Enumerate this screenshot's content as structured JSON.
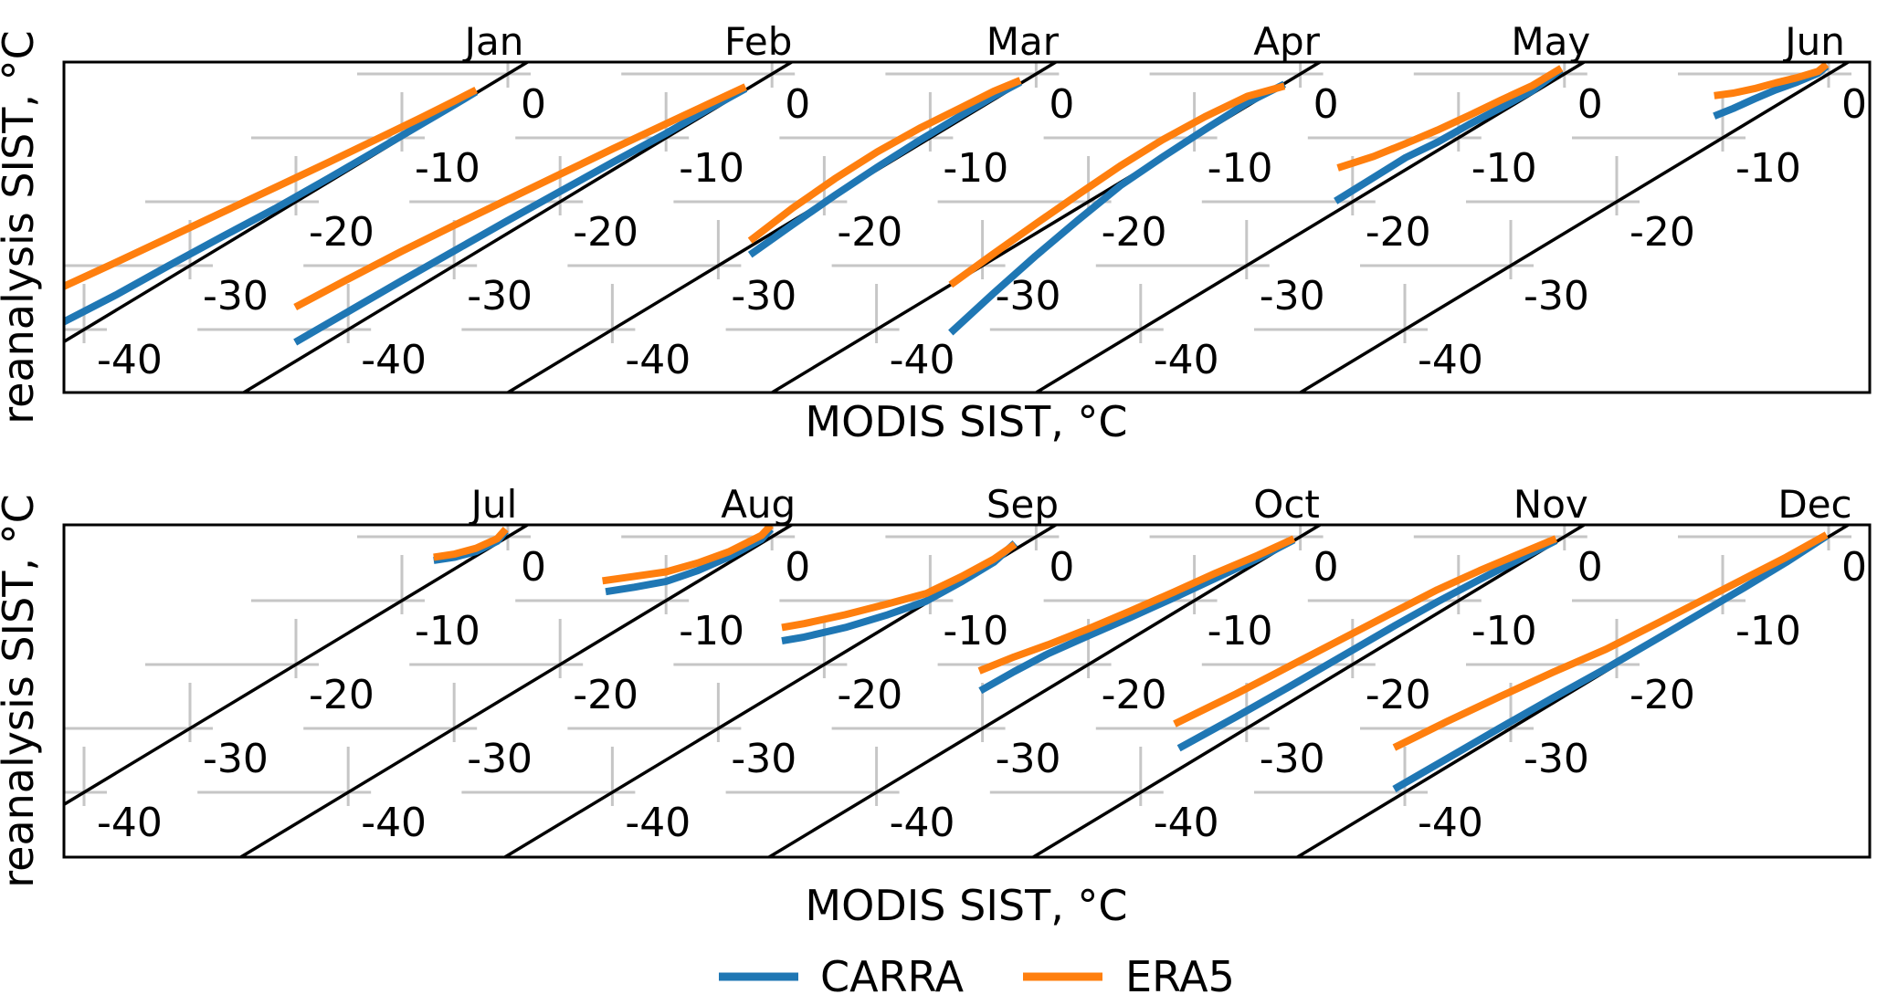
{
  "labels": {
    "x_axis": "MODIS SIST, °C",
    "y_axis": "reanalysis SIST, °C",
    "legend_carra": "CARRA",
    "legend_era5": "ERA5"
  },
  "chart_data": {
    "type": "line",
    "xlabel": "MODIS SIST, °C",
    "ylabel": "reanalysis SIST, °C",
    "x_axis_ticks_degC": [
      0,
      -10,
      -20,
      -30,
      -40
    ],
    "per_panel_xlim": [
      -50,
      2
    ],
    "per_panel_ylim": [
      -50,
      2
    ],
    "month_offset_degC": 25,
    "identity_line": true,
    "grid": false,
    "legend_position": "bottom-center",
    "rows": [
      [
        "Jan",
        "Feb",
        "Mar",
        "Apr",
        "May",
        "Jun"
      ],
      [
        "Jul",
        "Aug",
        "Sep",
        "Oct",
        "Nov",
        "Dec"
      ]
    ],
    "series": [
      {
        "name": "CARRA",
        "color": "#1f77b4"
      },
      {
        "name": "ERA5",
        "color": "#ff7f0e"
      }
    ],
    "months": [
      {
        "name": "Jan",
        "CARRA": [
          [
            -42.5,
            -39.3
          ],
          [
            -37,
            -34.6
          ],
          [
            -32,
            -30
          ],
          [
            -27,
            -25.5
          ],
          [
            -22,
            -21.1
          ],
          [
            -17,
            -16.4
          ],
          [
            -12,
            -11.6
          ],
          [
            -8,
            -7.7
          ],
          [
            -5,
            -4.8
          ],
          [
            -3,
            -2.8
          ]
        ],
        "ERA5": [
          [
            -42.5,
            -33.7
          ],
          [
            -37,
            -29.5
          ],
          [
            -32,
            -25.6
          ],
          [
            -27,
            -21.7
          ],
          [
            -22,
            -17.8
          ],
          [
            -17,
            -13.9
          ],
          [
            -12,
            -9.9
          ],
          [
            -8,
            -6.7
          ],
          [
            -5,
            -4.2
          ],
          [
            -3,
            -2.5
          ]
        ]
      },
      {
        "name": "Feb",
        "CARRA": [
          [
            -45,
            -42
          ],
          [
            -40,
            -37.2
          ],
          [
            -35,
            -32.4
          ],
          [
            -30,
            -27.7
          ],
          [
            -25,
            -23
          ],
          [
            -20,
            -18.4
          ],
          [
            -15,
            -13.8
          ],
          [
            -10,
            -9.3
          ],
          [
            -6,
            -5.5
          ],
          [
            -2.5,
            -2.3
          ]
        ],
        "ERA5": [
          [
            -45,
            -36.5
          ],
          [
            -40,
            -32.1
          ],
          [
            -35,
            -27.8
          ],
          [
            -30,
            -23.7
          ],
          [
            -25,
            -19.7
          ],
          [
            -20,
            -15.7
          ],
          [
            -15,
            -11.7
          ],
          [
            -10,
            -7.8
          ],
          [
            -6,
            -4.7
          ],
          [
            -2.5,
            -2
          ]
        ]
      },
      {
        "name": "Mar",
        "CARRA": [
          [
            -27,
            -28.3
          ],
          [
            -23,
            -23.6
          ],
          [
            -19,
            -19
          ],
          [
            -15,
            -14.6
          ],
          [
            -11,
            -10.4
          ],
          [
            -7,
            -6.4
          ],
          [
            -4,
            -3.5
          ],
          [
            -1.5,
            -1.3
          ]
        ],
        "ERA5": [
          [
            -27,
            -26.1
          ],
          [
            -23,
            -21
          ],
          [
            -19,
            -16.4
          ],
          [
            -15,
            -12.2
          ],
          [
            -11,
            -8.5
          ],
          [
            -7,
            -5.2
          ],
          [
            -4,
            -2.7
          ],
          [
            -1.5,
            -1
          ]
        ]
      },
      {
        "name": "Apr",
        "CARRA": [
          [
            -33,
            -40.5
          ],
          [
            -29,
            -34.4
          ],
          [
            -25,
            -28.5
          ],
          [
            -21,
            -22.9
          ],
          [
            -17,
            -17.5
          ],
          [
            -13,
            -13
          ],
          [
            -9,
            -8.7
          ],
          [
            -5,
            -4.5
          ],
          [
            -1.5,
            -1.6
          ]
        ],
        "ERA5": [
          [
            -33,
            -33
          ],
          [
            -29,
            -28.2
          ],
          [
            -25,
            -23.5
          ],
          [
            -21,
            -18.9
          ],
          [
            -17,
            -14.4
          ],
          [
            -13,
            -10.3
          ],
          [
            -9,
            -6.7
          ],
          [
            -5,
            -3.5
          ],
          [
            -1.5,
            -1.9
          ]
        ]
      },
      {
        "name": "May",
        "CARRA": [
          [
            -21.6,
            -19.9
          ],
          [
            -18,
            -16.2
          ],
          [
            -15,
            -13.1
          ],
          [
            -12,
            -10.7
          ],
          [
            -9,
            -7.9
          ],
          [
            -6,
            -5.3
          ],
          [
            -3,
            -2.6
          ],
          [
            -0.3,
            0.7
          ]
        ],
        "ERA5": [
          [
            -21.4,
            -14.7
          ],
          [
            -18,
            -12.9
          ],
          [
            -15,
            -10.9
          ],
          [
            -12,
            -8.8
          ],
          [
            -9,
            -6.5
          ],
          [
            -6,
            -4.1
          ],
          [
            -3,
            -1.8
          ],
          [
            -0.3,
            0.9
          ]
        ]
      },
      {
        "name": "Jun",
        "CARRA": [
          [
            -10.8,
            -6.6
          ],
          [
            -9,
            -5.4
          ],
          [
            -7,
            -3.9
          ],
          [
            -5,
            -2.5
          ],
          [
            -3,
            -1.3
          ],
          [
            -1,
            0.1
          ],
          [
            -0.2,
            1.2
          ]
        ],
        "ERA5": [
          [
            -10.8,
            -3.4
          ],
          [
            -9,
            -3
          ],
          [
            -7,
            -2.3
          ],
          [
            -5,
            -1.4
          ],
          [
            -3,
            -0.6
          ],
          [
            -1,
            0.4
          ],
          [
            -0.2,
            1.5
          ]
        ]
      },
      {
        "name": "Jul",
        "CARRA": [
          [
            -7,
            -3.7
          ],
          [
            -5,
            -3.2
          ],
          [
            -3,
            -2.3
          ],
          [
            -1,
            -0.7
          ],
          [
            -0.2,
            0.9
          ]
        ],
        "ERA5": [
          [
            -7,
            -3.2
          ],
          [
            -5,
            -2.7
          ],
          [
            -3,
            -1.8
          ],
          [
            -1,
            -0.3
          ],
          [
            -0.2,
            1.2
          ]
        ]
      },
      {
        "name": "Aug",
        "CARRA": [
          [
            -15.7,
            -8.6
          ],
          [
            -13,
            -7.9
          ],
          [
            -10,
            -7
          ],
          [
            -7,
            -5.3
          ],
          [
            -4,
            -3.1
          ],
          [
            -1,
            -0.4
          ],
          [
            -0.1,
            1.2
          ]
        ],
        "ERA5": [
          [
            -16,
            -6.9
          ],
          [
            -13,
            -6.2
          ],
          [
            -10,
            -5.5
          ],
          [
            -7,
            -4.1
          ],
          [
            -4,
            -2.3
          ],
          [
            -1,
            0.2
          ],
          [
            -0.1,
            1.8
          ]
        ]
      },
      {
        "name": "Sep",
        "CARRA": [
          [
            -24,
            -16.3
          ],
          [
            -21.9,
            -15.7
          ],
          [
            -18,
            -14.2
          ],
          [
            -14,
            -12.2
          ],
          [
            -10.4,
            -10.1
          ],
          [
            -7,
            -7
          ],
          [
            -4,
            -4
          ],
          [
            -2,
            -1
          ]
        ],
        "ERA5": [
          [
            -24,
            -14.2
          ],
          [
            -21.9,
            -13.6
          ],
          [
            -18,
            -12.2
          ],
          [
            -14,
            -10.5
          ],
          [
            -10.4,
            -8.9
          ],
          [
            -7,
            -6.2
          ],
          [
            -4,
            -3.5
          ],
          [
            -2,
            -1.2
          ]
        ]
      },
      {
        "name": "Oct",
        "CARRA": [
          [
            -30.2,
            -24.1
          ],
          [
            -27,
            -21.1
          ],
          [
            -23.8,
            -18.3
          ],
          [
            -20,
            -15.5
          ],
          [
            -16,
            -12.6
          ],
          [
            -12,
            -9.6
          ],
          [
            -8,
            -6.5
          ],
          [
            -4,
            -3.4
          ],
          [
            -0.6,
            -0.5
          ]
        ],
        "ERA5": [
          [
            -30.3,
            -21
          ],
          [
            -27,
            -18.8
          ],
          [
            -23.8,
            -16.9
          ],
          [
            -20,
            -14.4
          ],
          [
            -16,
            -11.6
          ],
          [
            -12,
            -8.7
          ],
          [
            -8,
            -5.7
          ],
          [
            -4,
            -2.9
          ],
          [
            -0.6,
            -0.3
          ]
        ]
      },
      {
        "name": "Nov",
        "CARRA": [
          [
            -36.4,
            -33.1
          ],
          [
            -31,
            -28.2
          ],
          [
            -26,
            -23.5
          ],
          [
            -21,
            -18.7
          ],
          [
            -16,
            -13.9
          ],
          [
            -12,
            -10.2
          ],
          [
            -8,
            -6.7
          ],
          [
            -4,
            -3.3
          ],
          [
            -0.8,
            -0.6
          ]
        ],
        "ERA5": [
          [
            -36.8,
            -29.3
          ],
          [
            -31,
            -24.6
          ],
          [
            -26,
            -20.3
          ],
          [
            -21,
            -16
          ],
          [
            -16,
            -11.7
          ],
          [
            -12,
            -8.3
          ],
          [
            -8,
            -5.3
          ],
          [
            -4,
            -2.5
          ],
          [
            -0.8,
            -0.3
          ]
        ]
      },
      {
        "name": "Dec",
        "CARRA": [
          [
            -41,
            -39.5
          ],
          [
            -36,
            -34.7
          ],
          [
            -31,
            -29.9
          ],
          [
            -26,
            -25.2
          ],
          [
            -21,
            -20.6
          ],
          [
            -16,
            -15.8
          ],
          [
            -12,
            -11.9
          ],
          [
            -8,
            -8
          ],
          [
            -4,
            -4
          ],
          [
            -0.2,
            0.1
          ]
        ],
        "ERA5": [
          [
            -41,
            -33
          ],
          [
            -36,
            -28.9
          ],
          [
            -31,
            -25
          ],
          [
            -26,
            -21.2
          ],
          [
            -21,
            -17.6
          ],
          [
            -16,
            -13.4
          ],
          [
            -12,
            -10
          ],
          [
            -8,
            -6.6
          ],
          [
            -4,
            -3.2
          ],
          [
            -0.2,
            0.3
          ]
        ]
      }
    ]
  }
}
